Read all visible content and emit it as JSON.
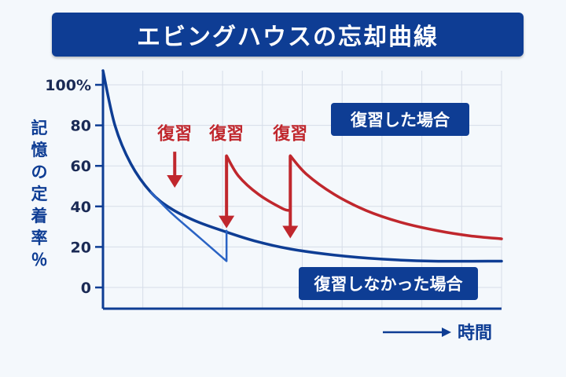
{
  "title": "エビングハウスの忘却曲線",
  "chart_data": {
    "type": "line",
    "title": "エビングハウスの忘却曲線",
    "ylabel": "記憶の定着率％",
    "xlabel": "時間",
    "ylim": [
      0,
      100
    ],
    "y_ticks": [
      "100%",
      "80",
      "60",
      "40",
      "20",
      "0"
    ],
    "grid": true,
    "series": [
      {
        "name": "復習しなかった場合",
        "color": "#0e3d94",
        "points": [
          [
            0,
            107
          ],
          [
            3,
            80
          ],
          [
            7,
            61
          ],
          [
            12,
            47
          ],
          [
            17,
            39
          ],
          [
            23,
            33
          ],
          [
            30,
            28
          ],
          [
            38,
            23
          ],
          [
            47,
            19
          ],
          [
            58,
            16
          ],
          [
            70,
            14
          ],
          [
            83,
            13
          ],
          [
            100,
            13
          ]
        ]
      },
      {
        "name": "復習した場合",
        "color": "#c0272d",
        "points": [
          [
            31,
            65
          ],
          [
            34,
            55
          ],
          [
            39,
            46
          ],
          [
            45,
            39
          ],
          [
            47,
            38
          ],
          [
            47,
            65
          ],
          [
            51,
            56
          ],
          [
            58,
            46
          ],
          [
            66,
            38
          ],
          [
            75,
            32
          ],
          [
            84,
            28
          ],
          [
            92,
            25.5
          ],
          [
            100,
            24
          ]
        ]
      },
      {
        "name": "",
        "color": "#2a63c4",
        "points": [
          [
            12,
            47
          ],
          [
            17,
            37
          ],
          [
            24,
            25
          ],
          [
            31,
            13
          ],
          [
            31,
            28
          ]
        ]
      }
    ],
    "annotations": [
      {
        "text": "復習",
        "color": "#c0272d",
        "x": 18,
        "y_text": 77,
        "y_arrow_start": 67,
        "y_arrow_end": 50
      },
      {
        "text": "復習",
        "color": "#c0272d",
        "x": 31,
        "y_text": 77,
        "y_arrow_start": 65,
        "y_arrow_end": 30
      },
      {
        "text": "復習",
        "color": "#c0272d",
        "x": 47,
        "y_text": 77,
        "y_arrow_start": 65,
        "y_arrow_end": 25
      }
    ],
    "legend": {
      "revised": "復習した場合",
      "not_revised": "復習しなかった場合"
    },
    "time_arrow": "→",
    "colors": {
      "navy": "#0e3d94",
      "red": "#c0272d",
      "grid": "#d6dde8"
    }
  }
}
